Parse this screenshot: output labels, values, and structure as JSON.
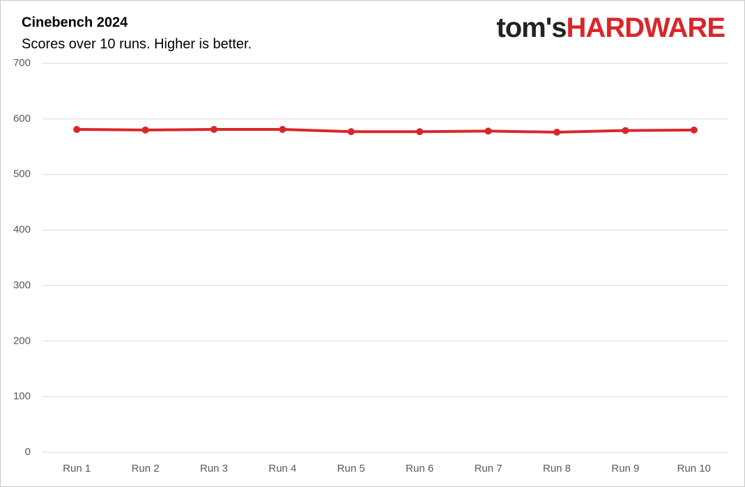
{
  "chart_data": {
    "type": "line",
    "title": "Cinebench 2024",
    "subtitle": "Scores over 10 runs. Higher is better.",
    "logo": {
      "prefix": "tom's",
      "name": "HARDWARE"
    },
    "categories": [
      "Run 1",
      "Run 2",
      "Run 3",
      "Run 4",
      "Run 5",
      "Run 6",
      "Run 7",
      "Run 8",
      "Run 9",
      "Run 10"
    ],
    "series": [
      {
        "name": "Cinebench 2024",
        "color": "#d9262b",
        "values": [
          581,
          580,
          581,
          581,
          577,
          577,
          578,
          576,
          579,
          580
        ]
      }
    ],
    "ylim": [
      0,
      700
    ],
    "yticks": [
      0,
      100,
      200,
      300,
      400,
      500,
      600,
      700
    ],
    "grid": true,
    "legend": false
  }
}
